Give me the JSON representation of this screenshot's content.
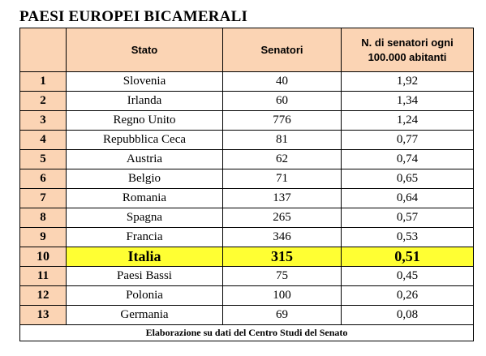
{
  "title": "PAESI EUROPEI BICAMERALI",
  "headers": [
    "",
    "Stato",
    "Senatori",
    "N. di senatori ogni 100.000 abitanti"
  ],
  "rows": [
    {
      "rank": "1",
      "state": "Slovenia",
      "senators": "40",
      "per100k": "1,92"
    },
    {
      "rank": "2",
      "state": "Irlanda",
      "senators": "60",
      "per100k": "1,34"
    },
    {
      "rank": "3",
      "state": "Regno Unito",
      "senators": "776",
      "per100k": "1,24"
    },
    {
      "rank": "4",
      "state": "Repubblica Ceca",
      "senators": "81",
      "per100k": "0,77"
    },
    {
      "rank": "5",
      "state": "Austria",
      "senators": "62",
      "per100k": "0,74"
    },
    {
      "rank": "6",
      "state": "Belgio",
      "senators": "71",
      "per100k": "0,65"
    },
    {
      "rank": "7",
      "state": "Romania",
      "senators": "137",
      "per100k": "0,64"
    },
    {
      "rank": "8",
      "state": "Spagna",
      "senators": "265",
      "per100k": "0,57"
    },
    {
      "rank": "9",
      "state": "Francia",
      "senators": "346",
      "per100k": "0,53"
    },
    {
      "rank": "10",
      "state": "Italia",
      "senators": "315",
      "per100k": "0,51",
      "highlight": true
    },
    {
      "rank": "11",
      "state": "Paesi Bassi",
      "senators": "75",
      "per100k": "0,45"
    },
    {
      "rank": "12",
      "state": "Polonia",
      "senators": "100",
      "per100k": "0,26"
    },
    {
      "rank": "13",
      "state": "Germania",
      "senators": "69",
      "per100k": "0,08"
    }
  ],
  "footer": "Elaborazione su dati del Centro Studi del Senato",
  "colors": {
    "header_bg": "#fbd4b4",
    "highlight_bg": "#ffff33"
  }
}
